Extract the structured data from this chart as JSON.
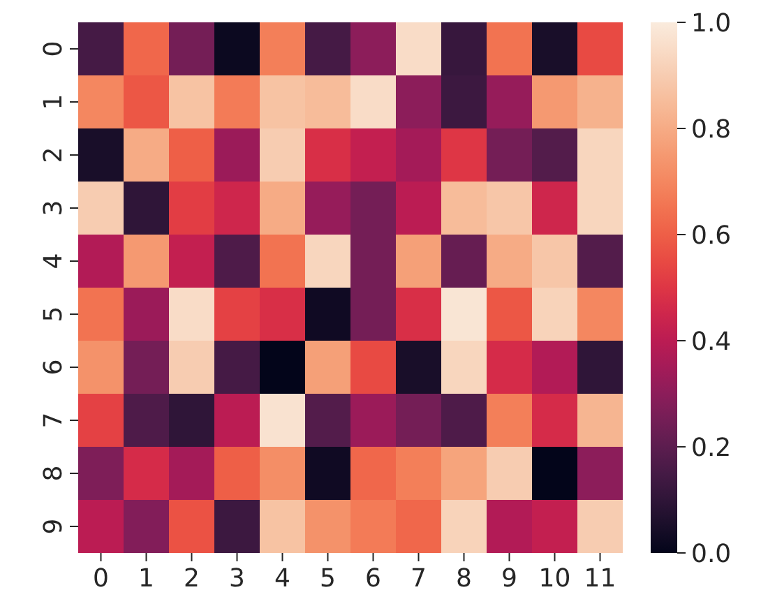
{
  "chart_data": {
    "type": "heatmap",
    "categories": [
      "0",
      "1",
      "2",
      "3",
      "4",
      "5",
      "6",
      "7",
      "8",
      "9",
      "10",
      "11"
    ],
    "y_categories": [
      "0",
      "1",
      "2",
      "3",
      "4",
      "5",
      "6",
      "7",
      "8",
      "9"
    ],
    "cells": [
      [
        0.15,
        0.62,
        0.25,
        0.02,
        0.68,
        0.15,
        0.3,
        0.95,
        0.12,
        0.65,
        0.05,
        0.55
      ],
      [
        0.7,
        0.58,
        0.87,
        0.67,
        0.87,
        0.85,
        0.95,
        0.3,
        0.13,
        0.32,
        0.75,
        0.82
      ],
      [
        0.05,
        0.8,
        0.6,
        0.33,
        0.9,
        0.48,
        0.42,
        0.35,
        0.5,
        0.25,
        0.18,
        0.93
      ],
      [
        0.9,
        0.1,
        0.52,
        0.45,
        0.8,
        0.32,
        0.25,
        0.4,
        0.85,
        0.88,
        0.45,
        0.93
      ],
      [
        0.38,
        0.75,
        0.42,
        0.17,
        0.65,
        0.93,
        0.25,
        0.77,
        0.22,
        0.8,
        0.88,
        0.18
      ],
      [
        0.65,
        0.33,
        0.95,
        0.53,
        0.48,
        0.03,
        0.25,
        0.48,
        0.98,
        0.58,
        0.92,
        0.7
      ],
      [
        0.73,
        0.25,
        0.9,
        0.15,
        0.0,
        0.77,
        0.55,
        0.05,
        0.93,
        0.47,
        0.38,
        0.1
      ],
      [
        0.53,
        0.17,
        0.1,
        0.4,
        0.97,
        0.18,
        0.33,
        0.25,
        0.17,
        0.68,
        0.47,
        0.83
      ],
      [
        0.27,
        0.47,
        0.35,
        0.6,
        0.72,
        0.03,
        0.62,
        0.68,
        0.78,
        0.9,
        0.0,
        0.3
      ],
      [
        0.4,
        0.28,
        0.57,
        0.13,
        0.87,
        0.73,
        0.67,
        0.62,
        0.92,
        0.38,
        0.42,
        0.9
      ]
    ],
    "clim": [
      0,
      1
    ],
    "cticks": [
      {
        "value": 0,
        "label": "0.0"
      },
      {
        "value": 0.2,
        "label": "0.2"
      },
      {
        "value": 0.4,
        "label": "0.4"
      },
      {
        "value": 0.6,
        "label": "0.6"
      },
      {
        "value": 0.8,
        "label": "0.8"
      },
      {
        "value": 1,
        "label": "1.0"
      }
    ]
  }
}
